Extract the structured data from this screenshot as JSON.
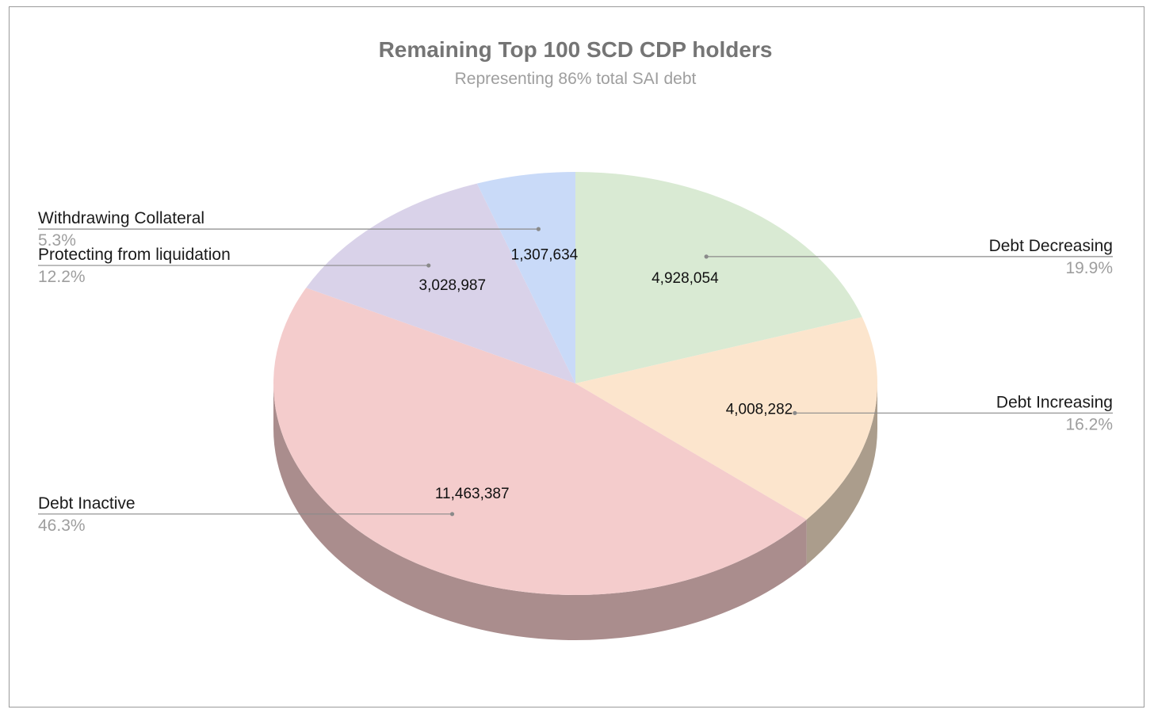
{
  "chart_data": {
    "type": "pie",
    "title": "Remaining Top 100 SCD CDP holders",
    "subtitle": "Representing 86% total SAI debt",
    "three_d": true,
    "slices": [
      {
        "label": "Debt Decreasing",
        "value": 4928054,
        "value_label": "4,928,054",
        "percent_label": "19.9%",
        "color": "#d9ead3",
        "side_color": "#a8b5a3",
        "side": "right"
      },
      {
        "label": "Debt Increasing",
        "value": 4008282,
        "value_label": "4,008,282",
        "percent_label": "16.2%",
        "color": "#fce5cd",
        "side_color": "#ab9d8c",
        "side": "right"
      },
      {
        "label": "Debt Inactive",
        "value": 11463387,
        "value_label": "11,463,387",
        "percent_label": "46.3%",
        "color": "#f4cccc",
        "side_color": "#aa8d8d",
        "side": "left"
      },
      {
        "label": "Protecting from liquidation",
        "value": 3028987,
        "value_label": "3,028,987",
        "percent_label": "12.2%",
        "color": "#d9d2e9",
        "side_color": "#9a95a5",
        "side": "left"
      },
      {
        "label": "Withdrawing Collateral",
        "value": 1307634,
        "value_label": "1,307,634",
        "percent_label": "5.3%",
        "color": "#c9daf8",
        "side_color": "#8f9bb0",
        "side": "left"
      }
    ],
    "legend": "none",
    "labels": "outside with leader lines"
  }
}
